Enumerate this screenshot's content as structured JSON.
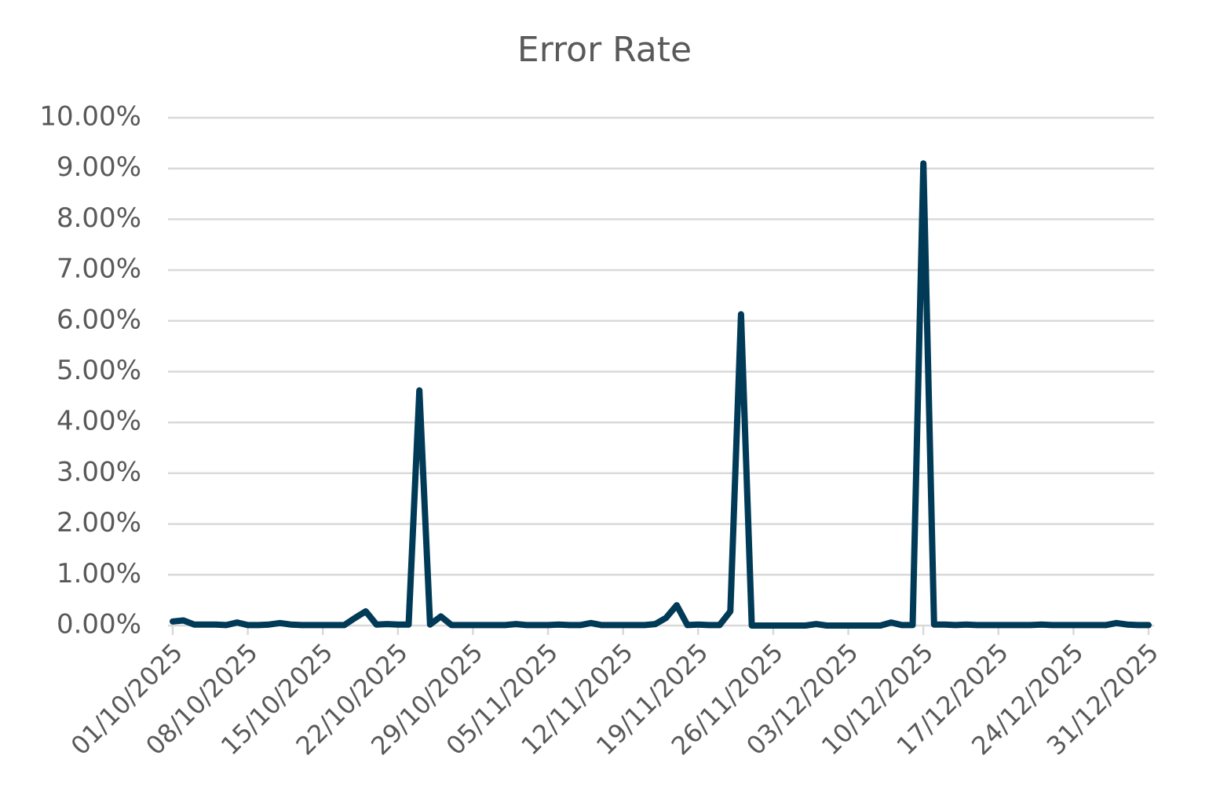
{
  "chart_data": {
    "type": "line",
    "title": "Error Rate",
    "categories": [
      "01/10/2025",
      null,
      null,
      null,
      null,
      null,
      null,
      "08/10/2025",
      null,
      null,
      null,
      null,
      null,
      null,
      "15/10/2025",
      null,
      null,
      null,
      null,
      null,
      null,
      "22/10/2025",
      null,
      null,
      null,
      null,
      null,
      null,
      "29/10/2025",
      null,
      null,
      null,
      null,
      null,
      null,
      "05/11/2025",
      null,
      null,
      null,
      null,
      null,
      null,
      "12/11/2025",
      null,
      null,
      null,
      null,
      null,
      null,
      "19/11/2025",
      null,
      null,
      null,
      null,
      null,
      null,
      "26/11/2025",
      null,
      null,
      null,
      null,
      null,
      null,
      "03/12/2025",
      null,
      null,
      null,
      null,
      null,
      null,
      "10/12/2025",
      null,
      null,
      null,
      null,
      null,
      null,
      "17/12/2025",
      null,
      null,
      null,
      null,
      null,
      null,
      "24/12/2025",
      null,
      null,
      null,
      null,
      null,
      null,
      "31/12/2025"
    ],
    "series": [
      {
        "name": "Error Rate",
        "color": "#003a57",
        "values": [
          0.08,
          0.1,
          0.02,
          0.02,
          0.02,
          0.01,
          0.06,
          0.01,
          0.01,
          0.02,
          0.05,
          0.02,
          0.01,
          0.01,
          0.01,
          0.01,
          0.01,
          0.15,
          0.28,
          0.02,
          0.03,
          0.02,
          0.02,
          4.63,
          0.02,
          0.18,
          0.01,
          0.01,
          0.01,
          0.01,
          0.01,
          0.01,
          0.03,
          0.01,
          0.01,
          0.01,
          0.02,
          0.01,
          0.01,
          0.05,
          0.01,
          0.01,
          0.01,
          0.01,
          0.01,
          0.03,
          0.15,
          0.4,
          0.01,
          0.02,
          0.01,
          0.01,
          0.28,
          6.13,
          0,
          0,
          0,
          0,
          0,
          0,
          0.03,
          0,
          0,
          0,
          0,
          0,
          0,
          0.06,
          0.01,
          0.01,
          9.1,
          0.02,
          0.02,
          0.01,
          0.02,
          0.01,
          0.01,
          0.01,
          0.01,
          0.01,
          0.01,
          0.02,
          0.01,
          0.01,
          0.01,
          0.01,
          0.01,
          0.01,
          0.05,
          0.02,
          0.01,
          0.01
        ]
      }
    ],
    "ylim": [
      0,
      10
    ],
    "yticks": [
      {
        "value": 0,
        "label": "0.00%"
      },
      {
        "value": 1,
        "label": "1.00%"
      },
      {
        "value": 2,
        "label": "2.00%"
      },
      {
        "value": 3,
        "label": "3.00%"
      },
      {
        "value": 4,
        "label": "4.00%"
      },
      {
        "value": 5,
        "label": "5.00%"
      },
      {
        "value": 6,
        "label": "6.00%"
      },
      {
        "value": 7,
        "label": "7.00%"
      },
      {
        "value": 8,
        "label": "8.00%"
      },
      {
        "value": 9,
        "label": "9.00%"
      },
      {
        "value": 10,
        "label": "10.00%"
      }
    ],
    "grid": true
  }
}
